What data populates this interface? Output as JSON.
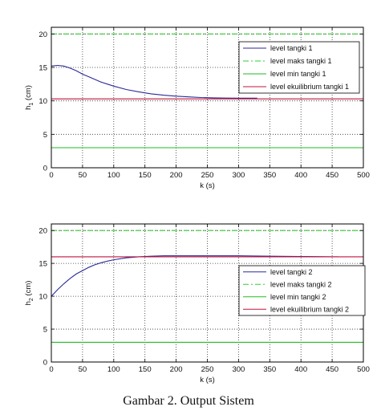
{
  "caption": "Gambar 2. Output Sistem",
  "colors": {
    "level": "#2a2a9a",
    "maks": "#33cc33",
    "min": "#22bb22",
    "ekuilibrium": "#c0143c",
    "grid": "#333333",
    "legend_border": "#000000"
  },
  "chart_data": [
    {
      "type": "line",
      "title": "",
      "xlabel": "k (s)",
      "ylabel": "h_1 (cm)",
      "ylabel_main": "h",
      "ylabel_sub": "1",
      "ylabel_unit": " (cm)",
      "xlim": [
        0,
        500
      ],
      "ylim": [
        0,
        21
      ],
      "xticks": [
        0,
        50,
        100,
        150,
        200,
        250,
        300,
        350,
        400,
        450,
        500
      ],
      "yticks": [
        0,
        5,
        10,
        15,
        20
      ],
      "grid": true,
      "legend_position": "top-right",
      "series": [
        {
          "name": "level tangki 1",
          "style": "solid",
          "color_key": "level",
          "x": [
            0,
            10,
            20,
            30,
            40,
            50,
            60,
            70,
            80,
            90,
            100,
            120,
            140,
            160,
            180,
            200,
            220,
            240,
            260,
            280,
            300,
            320,
            330
          ],
          "y": [
            15.2,
            15.3,
            15.2,
            14.9,
            14.5,
            14.0,
            13.6,
            13.2,
            12.8,
            12.5,
            12.2,
            11.7,
            11.35,
            11.05,
            10.85,
            10.7,
            10.6,
            10.5,
            10.45,
            10.42,
            10.4,
            10.4,
            10.4
          ]
        },
        {
          "name": "level maks tangki 1",
          "style": "dashdot",
          "color_key": "maks",
          "x": [
            0,
            500
          ],
          "y": [
            20,
            20
          ]
        },
        {
          "name": "level min tangki 1",
          "style": "solid",
          "color_key": "min",
          "x": [
            0,
            500
          ],
          "y": [
            3,
            3
          ]
        },
        {
          "name": "level ekuilibrium tangki 1",
          "style": "solid",
          "color_key": "ekuilibrium",
          "x": [
            0,
            500
          ],
          "y": [
            10.3,
            10.3
          ]
        }
      ]
    },
    {
      "type": "line",
      "title": "",
      "xlabel": "k (s)",
      "ylabel": "h_2 (cm)",
      "ylabel_main": "h",
      "ylabel_sub": "2",
      "ylabel_unit": " (cm)",
      "xlim": [
        0,
        500
      ],
      "ylim": [
        0,
        21
      ],
      "xticks": [
        0,
        50,
        100,
        150,
        200,
        250,
        300,
        350,
        400,
        450,
        500
      ],
      "yticks": [
        0,
        5,
        10,
        15,
        20
      ],
      "grid": true,
      "legend_position": "bottom-right",
      "series": [
        {
          "name": "level tangki 2",
          "style": "solid",
          "color_key": "level",
          "x": [
            0,
            10,
            20,
            30,
            40,
            50,
            60,
            70,
            80,
            90,
            100,
            120,
            140,
            160,
            180,
            200,
            250,
            300,
            350,
            400,
            450,
            460
          ],
          "y": [
            10.0,
            11.0,
            11.9,
            12.7,
            13.4,
            13.9,
            14.4,
            14.8,
            15.1,
            15.35,
            15.55,
            15.85,
            16.0,
            16.1,
            16.15,
            16.15,
            16.15,
            16.15,
            16.1,
            16.05,
            16.0,
            16.0
          ]
        },
        {
          "name": "level maks tangki 2",
          "style": "dashdot",
          "color_key": "maks",
          "x": [
            0,
            500
          ],
          "y": [
            20,
            20
          ]
        },
        {
          "name": "level min tangki 2",
          "style": "solid",
          "color_key": "min",
          "x": [
            0,
            500
          ],
          "y": [
            3,
            3
          ]
        },
        {
          "name": "level ekuilibrium tangki 2",
          "style": "solid",
          "color_key": "ekuilibrium",
          "x": [
            0,
            500
          ],
          "y": [
            16.0,
            16.0
          ]
        }
      ]
    }
  ]
}
